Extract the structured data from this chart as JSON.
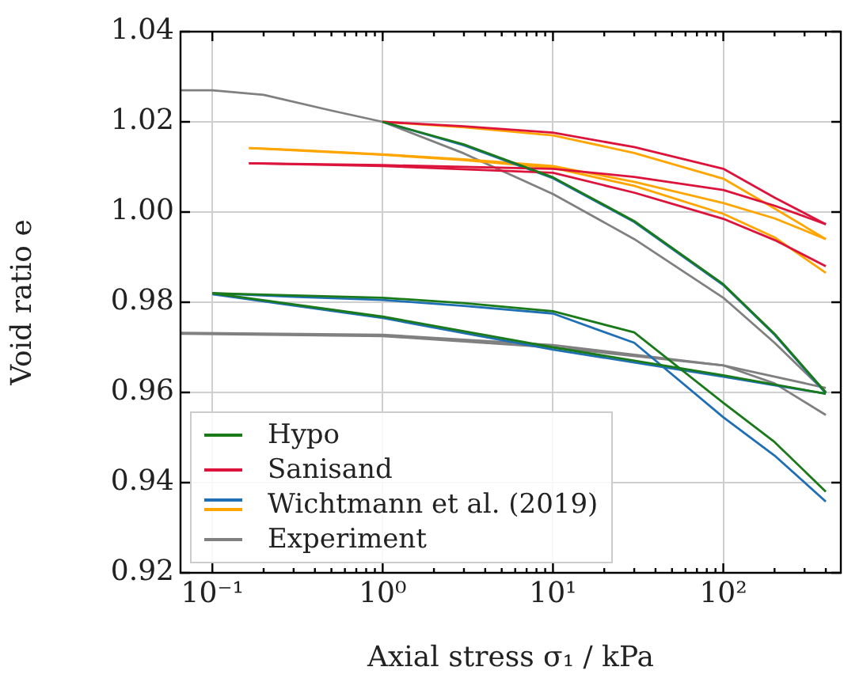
{
  "chart_data": {
    "type": "line",
    "xlabel": "Axial stress σ₁ / kPa",
    "ylabel": "Void ratio e",
    "log": "x",
    "grid": true,
    "legend": "bottom left",
    "xlim": [
      0.065,
      490
    ],
    "ylim": [
      0.92,
      1.04
    ],
    "xticks": [
      {
        "value": 0.1,
        "label": "10⁻¹"
      },
      {
        "value": 0.2,
        "label": null
      },
      {
        "value": 0.3,
        "label": null
      },
      {
        "value": 0.4,
        "label": null
      },
      {
        "value": 0.5,
        "label": null
      },
      {
        "value": 0.6,
        "label": null
      },
      {
        "value": 0.7,
        "label": null
      },
      {
        "value": 0.8,
        "label": null
      },
      {
        "value": 0.9,
        "label": null
      },
      {
        "value": 1,
        "label": "10⁰"
      },
      {
        "value": 2,
        "label": null
      },
      {
        "value": 3,
        "label": null
      },
      {
        "value": 4,
        "label": null
      },
      {
        "value": 5,
        "label": null
      },
      {
        "value": 6,
        "label": null
      },
      {
        "value": 7,
        "label": null
      },
      {
        "value": 8,
        "label": null
      },
      {
        "value": 9,
        "label": null
      },
      {
        "value": 10,
        "label": "10¹"
      },
      {
        "value": 20,
        "label": null
      },
      {
        "value": 30,
        "label": null
      },
      {
        "value": 40,
        "label": null
      },
      {
        "value": 50,
        "label": null
      },
      {
        "value": 60,
        "label": null
      },
      {
        "value": 70,
        "label": null
      },
      {
        "value": 80,
        "label": null
      },
      {
        "value": 90,
        "label": null
      },
      {
        "value": 100,
        "label": "10²"
      },
      {
        "value": 200,
        "label": null
      },
      {
        "value": 300,
        "label": null
      },
      {
        "value": 400,
        "label": null
      }
    ],
    "yticks": [
      {
        "value": 0.92,
        "label": "0.92"
      },
      {
        "value": 0.94,
        "label": "0.94"
      },
      {
        "value": 0.96,
        "label": "0.96"
      },
      {
        "value": 0.98,
        "label": "0.98"
      },
      {
        "value": 1.0,
        "label": "1.00"
      },
      {
        "value": 1.02,
        "label": "1.02"
      },
      {
        "value": 1.04,
        "label": "1.04"
      }
    ],
    "series": [
      {
        "name": "Hypo",
        "color": "#1a7a1a",
        "x": [
          0.1,
          0.3,
          1,
          3,
          10,
          30,
          100,
          200,
          400
        ],
        "values": [
          0.982,
          0.9815,
          0.981,
          0.9798,
          0.978,
          0.9733,
          0.9577,
          0.949,
          0.938
        ]
      },
      {
        "color": "#1a7a1a",
        "x": [
          0.1,
          1,
          10,
          100,
          400
        ],
        "values": [
          0.982,
          0.9768,
          0.97,
          0.9638,
          0.9597
        ]
      },
      {
        "color": "#1a7a1a",
        "x": [
          1,
          3,
          10,
          30,
          100,
          200,
          400
        ],
        "values": [
          1.02,
          1.015,
          1.0077,
          0.998,
          0.984,
          0.973,
          0.96
        ]
      },
      {
        "name": "Sanisand",
        "color": "#dc143c",
        "x": [
          1,
          3,
          10,
          30,
          100,
          200,
          400
        ],
        "values": [
          1.02,
          1.019,
          1.0176,
          1.0144,
          1.0096,
          1.0032,
          0.9973
        ]
      },
      {
        "color": "#dc143c",
        "x": [
          0.164,
          1,
          10,
          30,
          100,
          200,
          400
        ],
        "values": [
          1.0108,
          1.0104,
          1.0096,
          1.0078,
          1.0049,
          1.0014,
          0.9973
        ]
      },
      {
        "color": "#dc143c",
        "x": [
          0.164,
          1,
          10,
          30,
          100,
          200,
          400
        ],
        "values": [
          1.0108,
          1.0102,
          1.0087,
          1.0043,
          0.9985,
          0.9938,
          0.988
        ]
      },
      {
        "name": "Wichtmann et al. (2019)",
        "color": "#1f6fb4",
        "x": [
          0.1,
          0.3,
          1,
          3,
          10,
          30,
          100,
          200,
          400
        ],
        "values": [
          0.982,
          0.9812,
          0.9805,
          0.9792,
          0.9775,
          0.971,
          0.9545,
          0.946,
          0.9358
        ]
      },
      {
        "color": "#1f6fb4",
        "x": [
          0.1,
          1,
          10,
          100,
          400
        ],
        "values": [
          0.9818,
          0.9765,
          0.9695,
          0.9635,
          0.9597
        ]
      },
      {
        "color": "#1f6fb4",
        "x": [
          1,
          3,
          10,
          30,
          100,
          200,
          400
        ],
        "values": [
          1.02,
          1.0148,
          1.0075,
          0.9978,
          0.9838,
          0.9728,
          0.9598
        ]
      },
      {
        "color": "#ffa500",
        "x": [
          1,
          3,
          10,
          30,
          100,
          200,
          400
        ],
        "values": [
          1.02,
          1.0188,
          1.017,
          1.0131,
          1.0074,
          1.0008,
          0.994
        ]
      },
      {
        "color": "#ffa500",
        "x": [
          0.164,
          0.3,
          1,
          3,
          10,
          30,
          100,
          200,
          400
        ],
        "values": [
          1.0142,
          1.0138,
          1.0128,
          1.0117,
          1.0102,
          1.0067,
          1.002,
          0.9986,
          0.994
        ]
      },
      {
        "color": "#ffa500",
        "x": [
          0.164,
          1,
          3,
          10,
          30,
          100,
          200,
          400
        ],
        "values": [
          1.0142,
          1.0127,
          1.0115,
          1.0098,
          1.0058,
          0.9996,
          0.9944,
          0.9865
        ]
      },
      {
        "name": "Experiment",
        "color": "#808080",
        "x": [
          0.065,
          0.1,
          0.2,
          0.5,
          1,
          3,
          10,
          30,
          100,
          200,
          400
        ],
        "values": [
          1.027,
          1.027,
          1.026,
          1.0225,
          1.02,
          1.013,
          1.004,
          0.994,
          0.981,
          0.971,
          0.96
        ]
      },
      {
        "color": "#808080",
        "x": [
          0.065,
          1,
          10,
          100,
          200,
          400
        ],
        "values": [
          0.973,
          0.9725,
          0.97,
          0.966,
          0.962,
          0.955
        ]
      },
      {
        "color": "#808080",
        "x": [
          0.065,
          1,
          10,
          100,
          400
        ],
        "values": [
          0.9732,
          0.9728,
          0.9705,
          0.966,
          0.961
        ]
      }
    ]
  }
}
